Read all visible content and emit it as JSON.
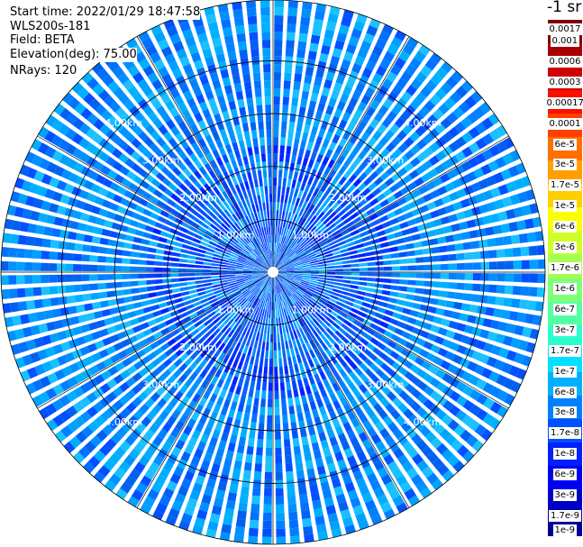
{
  "info": {
    "start_time": "Start time: 2022/01/29 18:47:58",
    "instrument": "WLS200s-181",
    "field": "Field: BETA",
    "elevation": "Elevation(deg): 75.00",
    "nrays": "NRays: 120"
  },
  "colorbar": {
    "units": "-1 sr",
    "colors": [
      "#7f0000",
      "#a80000",
      "#d10000",
      "#fa0f00",
      "#ff3f00",
      "#ff6f00",
      "#ff9f00",
      "#ffcf00",
      "#f9fe00",
      "#d0ff27",
      "#a6ff50",
      "#7dff7a",
      "#53ffa3",
      "#2affcd",
      "#00e0ff",
      "#00b0ff",
      "#0080ff",
      "#0050ff",
      "#0020ff",
      "#0000f1",
      "#0000c4",
      "#000096"
    ],
    "labels": [
      "0.0017",
      "0.001",
      "0.0006",
      "0.0003",
      "0.00017",
      "0.0001",
      "6e-5",
      "3e-5",
      "1.7e-5",
      "1e-5",
      "6e-6",
      "3e-6",
      "1.7e-6",
      "1e-6",
      "6e-7",
      "3e-7",
      "1.7e-7",
      "1e-7",
      "6e-8",
      "3e-8",
      "1.7e-8",
      "1e-8",
      "6e-9",
      "3e-9",
      "1.7e-9",
      "1e-9"
    ]
  },
  "chart_data": {
    "type": "heatmap",
    "projection": "polar-ppi",
    "field": "BETA",
    "n_rays": 120,
    "elevation_deg": 75.0,
    "range_max_km": 5.15,
    "range_rings_km": [
      1.0,
      2.0,
      3.0,
      4.0
    ],
    "range_ring_labels": [
      "1.00km",
      "2.00km",
      "3.00km",
      "4.00km"
    ],
    "dominant_value_range": [
      1e-08,
      1e-07
    ],
    "color_scale": "log",
    "grid": true
  }
}
